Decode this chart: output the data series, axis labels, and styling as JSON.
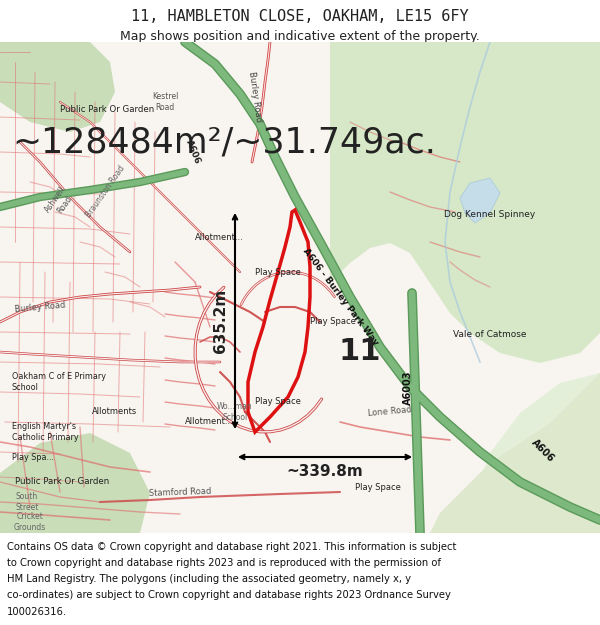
{
  "title_line1": "11, HAMBLETON CLOSE, OAKHAM, LE15 6FY",
  "title_line2": "Map shows position and indicative extent of the property.",
  "area_text": "~128484m²/~31.749ac.",
  "dim_vertical": "635.2m",
  "dim_horizontal": "~339.8m",
  "plot_number": "11",
  "footer_lines": [
    "Contains OS data © Crown copyright and database right 2021. This information is subject",
    "to Crown copyright and database rights 2023 and is reproduced with the permission of",
    "HM Land Registry. The polygons (including the associated geometry, namely x, y",
    "co-ordinates) are subject to Crown copyright and database rights 2023 Ordnance Survey",
    "100026316."
  ],
  "map_bg": "#f8f4ef",
  "road_red": "#e07070",
  "road_red_dark": "#cc4444",
  "road_outline": "#cc3333",
  "green_road": "#7db87d",
  "green_road_dark": "#5a9a5a",
  "green_light": "#d6e8c8",
  "green_mid": "#c8ddb8",
  "blue_line": "#a8c8e0",
  "property_red": "#dd1111",
  "title_bg": "#ffffff",
  "footer_bg": "#ffffff",
  "text_dark": "#222222",
  "text_mid": "#444444",
  "title_fontsize": 11,
  "subtitle_fontsize": 9,
  "area_fontsize": 25,
  "dim_fontsize": 11,
  "plot_num_fontsize": 22,
  "footer_fontsize": 7.2,
  "label_fontsize": 6.5
}
